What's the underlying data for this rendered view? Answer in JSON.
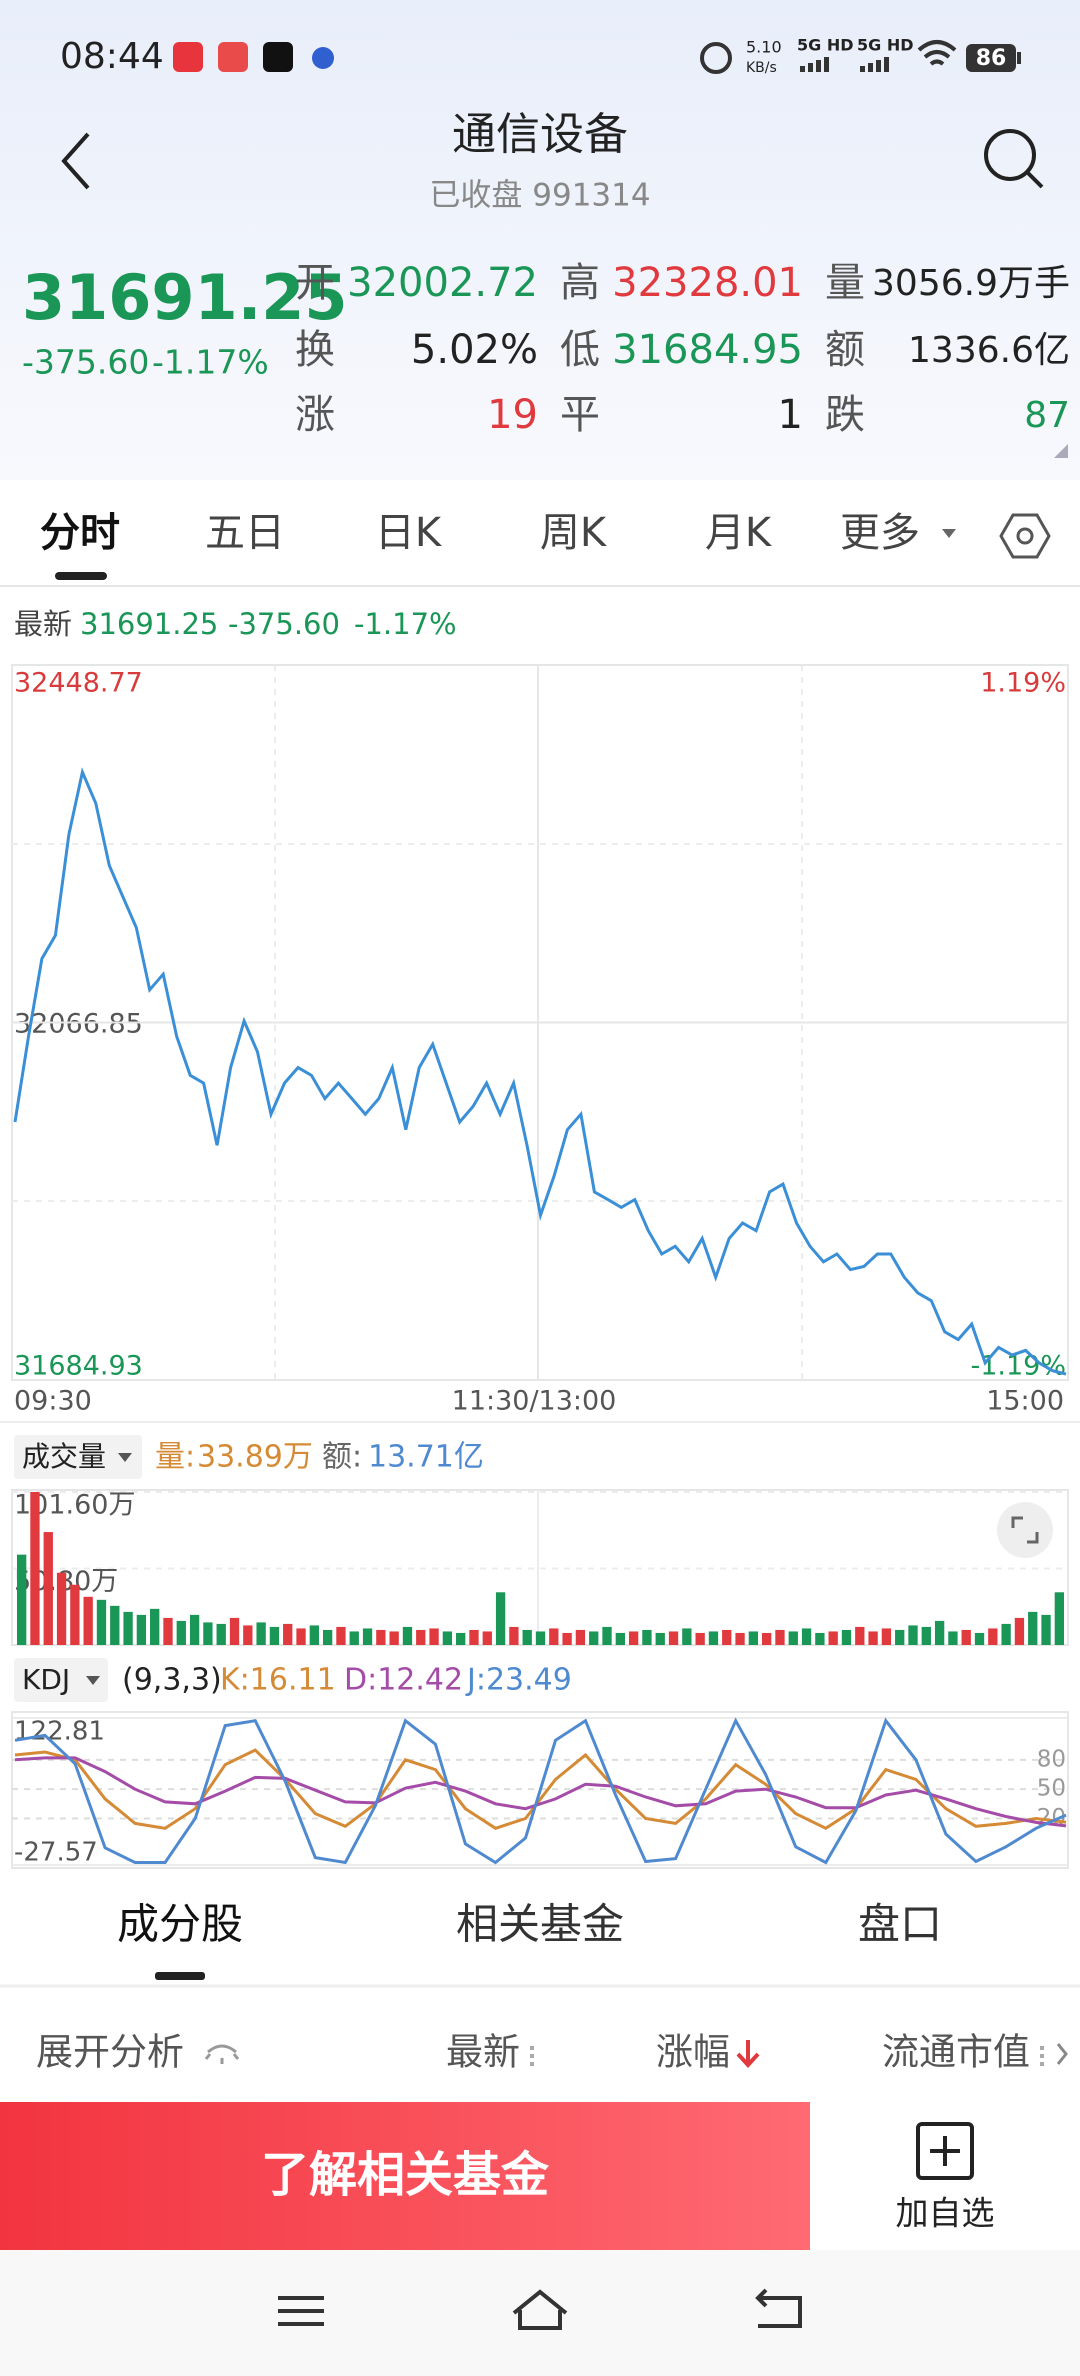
{
  "status_bar": {
    "time": "08:44",
    "net_speed": "5.10",
    "net_unit": "KB/s",
    "signal_1": "5G HD",
    "signal_2": "5G HD",
    "battery": "86"
  },
  "header": {
    "title": "通信设备",
    "subtitle": "已收盘 991314"
  },
  "quote": {
    "price": "31691.25",
    "change": "-375.60",
    "change_pct": "-1.17%",
    "stats": [
      [
        {
          "label": "开",
          "value": "32002.72",
          "color": "#1a9656"
        },
        {
          "label": "高",
          "value": "32328.01",
          "color": "#e0393e"
        },
        {
          "label": "量",
          "value": "3056.9万手",
          "color": "#222222"
        }
      ],
      [
        {
          "label": "换",
          "value": "5.02%",
          "color": "#222222"
        },
        {
          "label": "低",
          "value": "31684.95",
          "color": "#1a9656"
        },
        {
          "label": "额",
          "value": "1336.6亿",
          "color": "#222222"
        }
      ],
      [
        {
          "label": "涨",
          "value": "19",
          "color": "#e0393e"
        },
        {
          "label": "平",
          "value": "1",
          "color": "#222222"
        },
        {
          "label": "跌",
          "value": "87",
          "color": "#1a9656"
        }
      ]
    ]
  },
  "tabs": [
    "分时",
    "五日",
    "日K",
    "周K",
    "月K",
    "更多"
  ],
  "latest": {
    "label": "最新",
    "price": "31691.25",
    "change": "-375.60",
    "change_pct": "-1.17%"
  },
  "intraday": {
    "color": "#3a8fd6",
    "ylim": [
      31684.93,
      32448.77
    ],
    "yticks": [
      32448.77,
      32066.85,
      31684.93
    ],
    "pct_labels": [
      "1.19%",
      "-1.19%"
    ],
    "x_labels": [
      "09:30",
      "11:30/13:00",
      "15:00"
    ],
    "values": [
      31960.6,
      32051.9,
      32135.0,
      32159.9,
      32267.8,
      32334.2,
      32301.0,
      32234.6,
      32201.4,
      32168.2,
      32101.8,
      32118.4,
      32051.9,
      32010.4,
      32002.1,
      31935.7,
      32018.7,
      32068.5,
      32035.3,
      31968.9,
      32002.1,
      32018.7,
      32010.4,
      31985.5,
      32002.1,
      31985.5,
      31968.9,
      31985.5,
      32018.7,
      31952.3,
      32018.7,
      32043.6,
      32002.1,
      31960.6,
      31977.2,
      32002.1,
      31968.9,
      32002.1,
      31935.7,
      31861.0,
      31902.5,
      31952.3,
      31968.9,
      31885.9,
      31877.6,
      31869.3,
      31877.6,
      31844.4,
      31819.5,
      31827.8,
      31811.2,
      31836.1,
      31794.6,
      31836.1,
      31852.7,
      31844.4,
      31885.9,
      31894.2,
      31852.7,
      31827.8,
      31811.2,
      31819.5,
      31802.9,
      31806.2,
      31819.5,
      31819.5,
      31794.6,
      31778.0,
      31769.7,
      31736.4,
      31728.1,
      31744.7,
      31703.2,
      31719.8,
      31711.5,
      31716.5,
      31703.2,
      31694.9,
      31691.25
    ]
  },
  "volume": {
    "selector": "成交量",
    "vol_label": "量:",
    "vol_value": "33.89万",
    "amt_label": "额:",
    "amt_value": "13.71亿",
    "up_color": "#e0393e",
    "down_color": "#1a9656",
    "ylim": [
      0,
      101.6
    ],
    "yticks": [
      {
        "value": 101.6,
        "label": "101.60万"
      },
      {
        "value": 50.8,
        "label": "50.80万"
      }
    ],
    "values": [
      60,
      101.6,
      75,
      48,
      40,
      32,
      30,
      26,
      22,
      20,
      24,
      18,
      16,
      20,
      15,
      14,
      18,
      13,
      15,
      12,
      14,
      11,
      13,
      10,
      12,
      9,
      11,
      10,
      9,
      12,
      10,
      11,
      9,
      8,
      10,
      9,
      35,
      12,
      10,
      9,
      11,
      8,
      10,
      9,
      12,
      8,
      9,
      10,
      8,
      9,
      11,
      8,
      9,
      10,
      8,
      9,
      8,
      10,
      9,
      11,
      8,
      9,
      10,
      12,
      9,
      11,
      10,
      13,
      12,
      16,
      9,
      10,
      8,
      11,
      14,
      18,
      22,
      20,
      35
    ]
  },
  "kdj": {
    "selector": "KDJ",
    "params": "(9,3,3)",
    "ylim": [
      -27.57,
      122.81
    ],
    "yticks": [
      122.81,
      -27.57
    ],
    "guide_ticks": [
      80,
      50,
      20
    ],
    "series": [
      {
        "name": "K",
        "label": "K:16.11",
        "color": "#d58a36",
        "values": [
          85,
          88,
          80,
          40,
          15,
          10,
          30,
          75,
          90,
          60,
          25,
          12,
          35,
          80,
          70,
          30,
          10,
          20,
          60,
          85,
          50,
          20,
          15,
          40,
          75,
          55,
          25,
          10,
          30,
          70,
          60,
          30,
          12,
          15,
          20,
          16.11
        ]
      },
      {
        "name": "D",
        "label": "D:12.42",
        "color": "#a44ca8",
        "values": [
          80,
          82,
          82,
          68,
          50,
          37,
          35,
          48,
          62,
          61,
          49,
          37,
          36,
          51,
          57,
          48,
          35,
          30,
          40,
          55,
          53,
          42,
          33,
          35,
          48,
          50,
          42,
          31,
          31,
          44,
          49,
          40,
          30,
          22,
          16,
          12.42
        ]
      },
      {
        "name": "J",
        "label": "J:23.49",
        "color": "#4f8ad0",
        "values": [
          100,
          105,
          76,
          -10,
          -25,
          -25,
          20,
          115,
          120,
          58,
          -20,
          -25,
          33,
          120,
          96,
          -6,
          -25,
          0,
          100,
          120,
          44,
          -24,
          -21,
          50,
          120,
          65,
          -9,
          -25,
          28,
          120,
          80,
          4,
          -24,
          -9,
          10,
          23.49
        ]
      }
    ]
  },
  "bottom_tabs": [
    "成分股",
    "相关基金",
    "盘口"
  ],
  "sort_header": [
    "展开分析",
    "最新",
    "涨幅",
    "流通市值"
  ],
  "action_bar": {
    "button": "了解相关基金",
    "watch": "加自选"
  }
}
